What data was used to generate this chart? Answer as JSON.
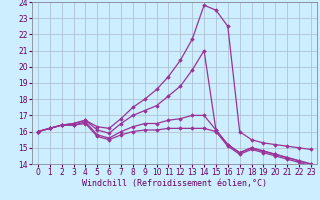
{
  "xlabel": "Windchill (Refroidissement éolien,°C)",
  "background_color": "#cceeff",
  "grid_color": "#aabbcc",
  "line_color": "#993399",
  "xlim": [
    -0.5,
    23.5
  ],
  "ylim": [
    14,
    24
  ],
  "xticks": [
    0,
    1,
    2,
    3,
    4,
    5,
    6,
    7,
    8,
    9,
    10,
    11,
    12,
    13,
    14,
    15,
    16,
    17,
    18,
    19,
    20,
    21,
    22,
    23
  ],
  "yticks": [
    14,
    15,
    16,
    17,
    18,
    19,
    20,
    21,
    22,
    23,
    24
  ],
  "series": [
    [
      16.0,
      16.2,
      16.4,
      16.5,
      16.7,
      16.3,
      16.2,
      16.8,
      17.5,
      18.0,
      18.6,
      19.4,
      20.4,
      21.7,
      23.8,
      23.5,
      22.5,
      16.0,
      15.5,
      15.3,
      15.2,
      15.1,
      15.0,
      14.9
    ],
    [
      16.0,
      16.2,
      16.4,
      16.5,
      16.7,
      16.1,
      15.9,
      16.5,
      17.0,
      17.3,
      17.6,
      18.2,
      18.8,
      19.8,
      21.0,
      16.1,
      15.2,
      14.7,
      15.0,
      14.8,
      14.6,
      14.4,
      14.2,
      14.0
    ],
    [
      16.0,
      16.2,
      16.4,
      16.4,
      16.6,
      15.8,
      15.6,
      16.0,
      16.3,
      16.5,
      16.5,
      16.7,
      16.8,
      17.0,
      17.0,
      16.1,
      15.2,
      14.7,
      15.0,
      14.8,
      14.6,
      14.4,
      14.2,
      14.0
    ],
    [
      16.0,
      16.2,
      16.4,
      16.4,
      16.5,
      15.7,
      15.5,
      15.8,
      16.0,
      16.1,
      16.1,
      16.2,
      16.2,
      16.2,
      16.2,
      16.0,
      15.1,
      14.6,
      14.9,
      14.7,
      14.5,
      14.3,
      14.1,
      13.9
    ]
  ],
  "marker": "D",
  "markersize": 1.8,
  "linewidth": 0.9,
  "tick_fontsize": 5.5,
  "label_fontsize": 6.0
}
